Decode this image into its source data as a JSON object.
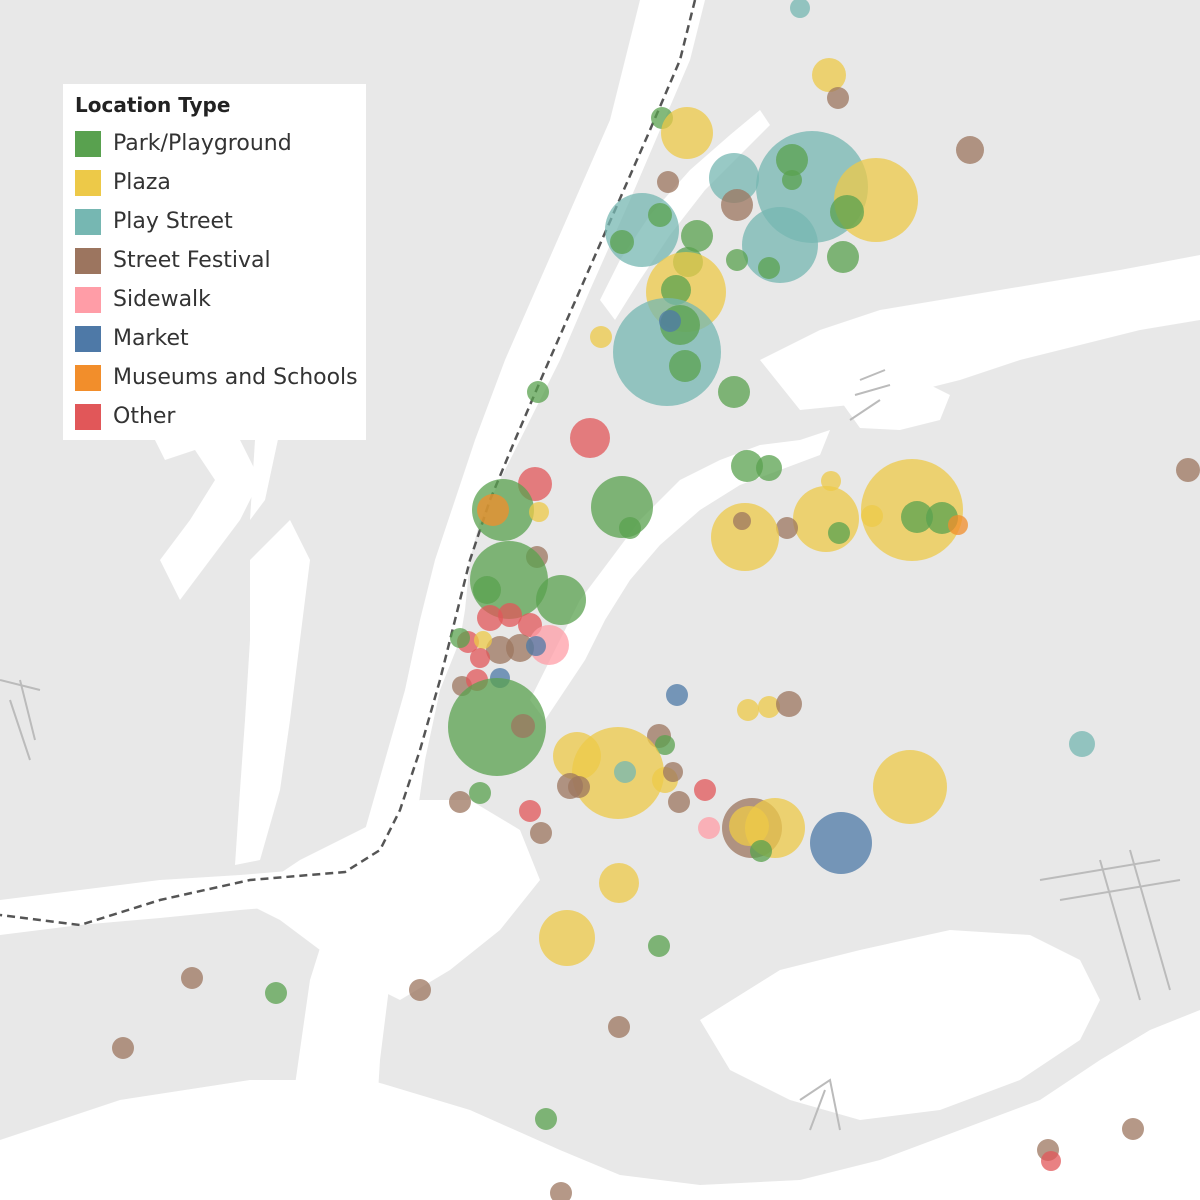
{
  "legend": {
    "title": "Location Type",
    "items": [
      {
        "key": "park",
        "label": "Park/Playground",
        "color": "#59a14f"
      },
      {
        "key": "plaza",
        "label": "Plaza",
        "color": "#edc948"
      },
      {
        "key": "play",
        "label": "Play Street",
        "color": "#76b7b2"
      },
      {
        "key": "fest",
        "label": "Street Festival",
        "color": "#9c755f"
      },
      {
        "key": "side",
        "label": "Sidewalk",
        "color": "#ff9da7"
      },
      {
        "key": "market",
        "label": "Market",
        "color": "#4e79a7"
      },
      {
        "key": "museum",
        "label": "Museums and Schools",
        "color": "#f28e2b"
      },
      {
        "key": "other",
        "label": "Other",
        "color": "#e15759"
      }
    ]
  },
  "map": {
    "land_color": "#e8e8e8",
    "water_color": "#ffffff",
    "boundary_style": "dashed",
    "marker_opacity": 0.75
  }
}
